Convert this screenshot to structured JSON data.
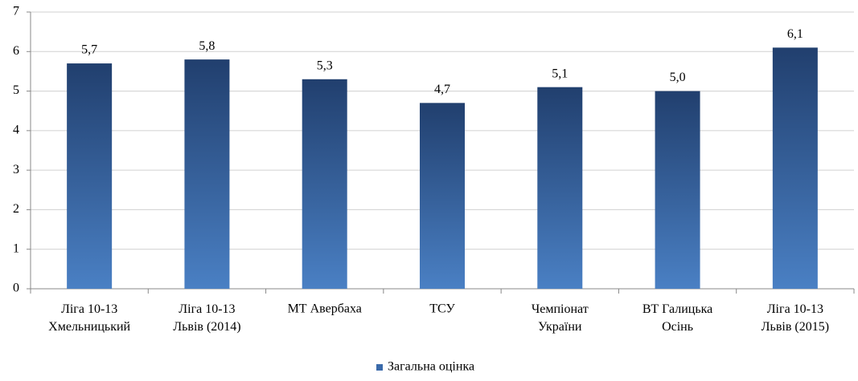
{
  "chart_data": {
    "type": "bar",
    "categories": [
      "Ліга 10-13\nХмельницький",
      "Ліга 10-13\nЛьвів (2014)",
      "МТ Авербаха",
      "ТСУ",
      "Чемпіонат\nУкраїни",
      "ВТ Галицька\nОсінь",
      "Ліга 10-13\nЛьвів (2015)"
    ],
    "series": [
      {
        "name": "Загальна оцінка",
        "color": "#3a6aaa",
        "values": [
          5.7,
          5.8,
          5.3,
          4.7,
          5.1,
          5.0,
          6.1
        ],
        "value_labels": [
          "5,7",
          "5,8",
          "5,3",
          "4,7",
          "5,1",
          "5,0",
          "6,1"
        ]
      }
    ],
    "ylim": [
      0,
      7
    ],
    "yticks": [
      0,
      1,
      2,
      3,
      4,
      5,
      6,
      7
    ],
    "grid": true,
    "legend": "bottom"
  }
}
